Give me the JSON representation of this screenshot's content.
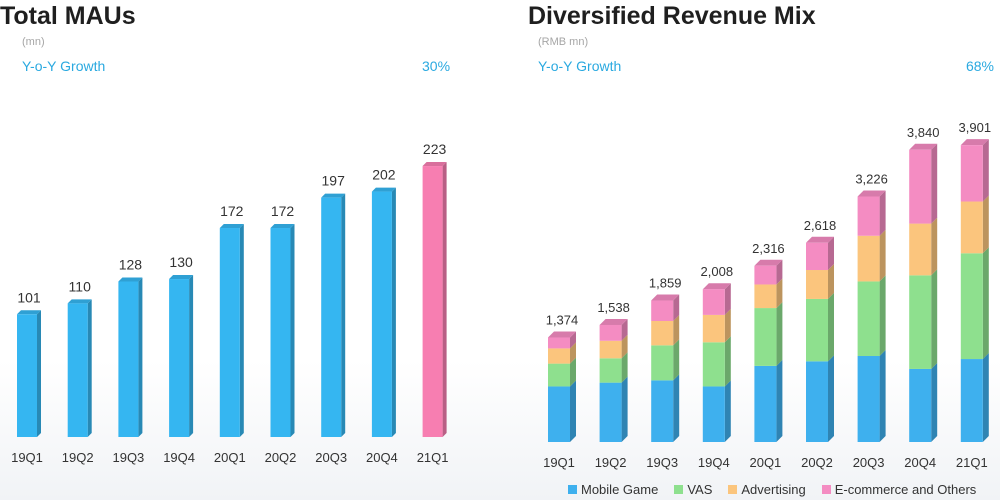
{
  "mau": {
    "title": "Total MAUs",
    "unit": "(mn)",
    "growth_label": "Y-o-Y Growth",
    "growth_value": "30%"
  },
  "revenue": {
    "title": "Diversified Revenue Mix",
    "unit": "(RMB mn)",
    "growth_label": "Y-o-Y Growth",
    "growth_value": "68%"
  },
  "colors": {
    "blue_bar": "#35b6f1",
    "pink_bar": "#f77eb1",
    "mobile_game": "#3eb0ee",
    "vas": "#8ee08e",
    "advertising": "#fbc57d",
    "ecommerce": "#f48cc2"
  },
  "chart_data": [
    {
      "type": "bar",
      "categories": [
        "19Q1",
        "19Q2",
        "19Q3",
        "19Q4",
        "20Q1",
        "20Q2",
        "20Q3",
        "20Q4",
        "21Q1"
      ],
      "values": [
        101,
        110,
        128,
        130,
        172,
        172,
        197,
        202,
        223
      ],
      "labels": [
        "101",
        "110",
        "128",
        "130",
        "172",
        "172",
        "197",
        "202",
        "223"
      ],
      "highlight_category": "21Q1",
      "title": "Total MAUs",
      "unit": "(mn)",
      "annotation": "Y-o-Y Growth 30%",
      "ylim": [
        0,
        240
      ],
      "grid": false
    },
    {
      "type": "bar",
      "stacked": true,
      "categories": [
        "19Q1",
        "19Q2",
        "19Q3",
        "19Q4",
        "20Q1",
        "20Q2",
        "20Q3",
        "20Q4",
        "21Q1"
      ],
      "series": [
        {
          "name": "Mobile Game",
          "values": [
            730,
            780,
            810,
            730,
            1000,
            1060,
            1130,
            960,
            1090
          ]
        },
        {
          "name": "VAS",
          "values": [
            300,
            320,
            460,
            580,
            760,
            820,
            980,
            1230,
            1390
          ]
        },
        {
          "name": "Advertising",
          "values": [
            200,
            230,
            320,
            360,
            310,
            380,
            600,
            680,
            680
          ]
        },
        {
          "name": "E-commerce and Others",
          "values": [
            144,
            208,
            269,
            338,
            246,
            358,
            516,
            970,
            741
          ]
        }
      ],
      "totals": [
        1374,
        1538,
        1859,
        2008,
        2316,
        2618,
        3226,
        3840,
        3901
      ],
      "total_labels": [
        "1,374",
        "1,538",
        "1,859",
        "2,008",
        "2,316",
        "2,618",
        "3,226",
        "3,840",
        "3,901"
      ],
      "title": "Diversified Revenue Mix",
      "unit": "(RMB mn)",
      "annotation": "Y-o-Y Growth 68%",
      "ylim": [
        0,
        4000
      ],
      "legend_position": "bottom",
      "grid": false
    }
  ]
}
